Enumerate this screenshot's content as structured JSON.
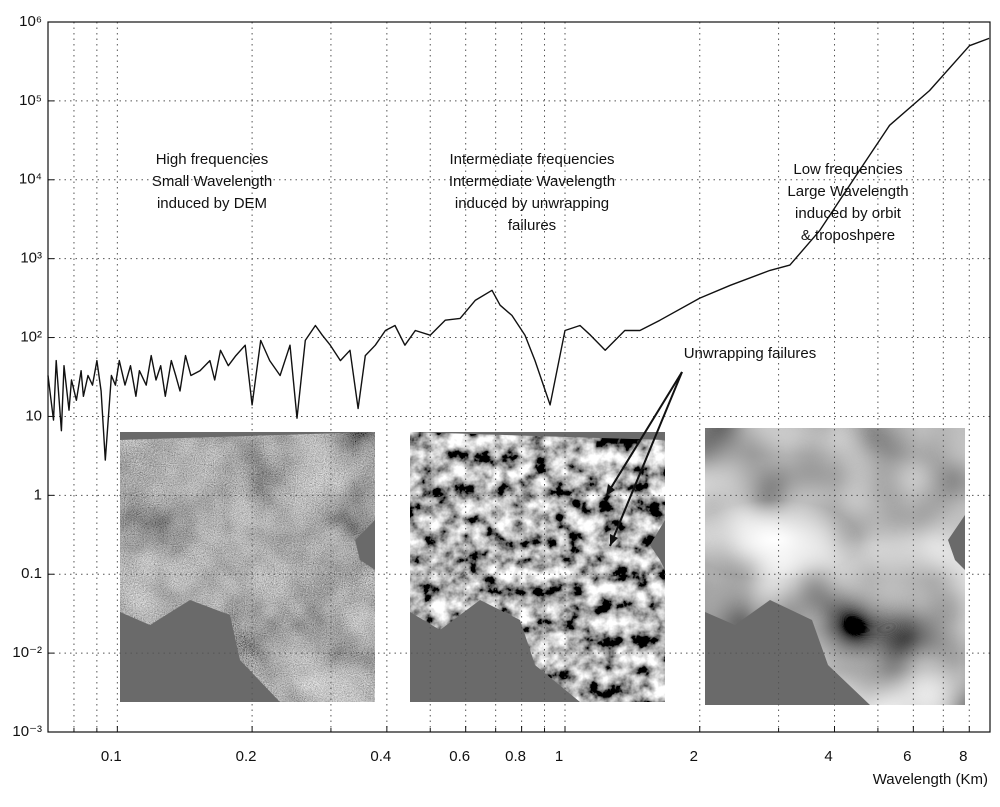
{
  "chart_data": {
    "type": "line",
    "x_label": "Wavelength (Km)",
    "log_x": true,
    "log_y": true,
    "grid": true,
    "xlim": [
      0.07,
      8.9
    ],
    "ylim": [
      0.001,
      1000000
    ],
    "xticks": [
      0.1,
      0.2,
      0.4,
      0.6,
      0.8,
      1,
      2,
      4,
      6,
      8
    ],
    "xminor": [
      0.08,
      0.09,
      0.3,
      0.5,
      0.7,
      0.9,
      3,
      5,
      7
    ],
    "yticks": [
      {
        "value": 0.001,
        "label": "10⁻³"
      },
      {
        "value": 0.01,
        "label": "10⁻²"
      },
      0.1,
      1,
      10,
      {
        "value": 100,
        "label": "10²"
      },
      {
        "value": 1000,
        "label": "10³"
      },
      {
        "value": 10000,
        "label": "10⁴"
      },
      {
        "value": 100000,
        "label": "10⁵"
      },
      {
        "value": 1000000,
        "label": "10⁶"
      }
    ],
    "series": [
      {
        "color": "#111111",
        "x": [
          0.07,
          0.072,
          0.073,
          0.075,
          0.076,
          0.078,
          0.079,
          0.081,
          0.083,
          0.084,
          0.086,
          0.088,
          0.09,
          0.092,
          0.094,
          0.097,
          0.099,
          0.101,
          0.104,
          0.107,
          0.11,
          0.112,
          0.116,
          0.119,
          0.122,
          0.125,
          0.128,
          0.132,
          0.135,
          0.138,
          0.142,
          0.146,
          0.153,
          0.161,
          0.165,
          0.17,
          0.177,
          0.184,
          0.193,
          0.2,
          0.209,
          0.219,
          0.231,
          0.243,
          0.252,
          0.263,
          0.277,
          0.287,
          0.299,
          0.315,
          0.331,
          0.345,
          0.358,
          0.377,
          0.397,
          0.417,
          0.439,
          0.463,
          0.5,
          0.54,
          0.583,
          0.63,
          0.687,
          0.716,
          0.761,
          0.814,
          0.857,
          0.926,
          1,
          1.08,
          1.14,
          1.23,
          1.36,
          1.47,
          1.63,
          2.0,
          2.34,
          2.87,
          3.18,
          3.71,
          4.55,
          5.31,
          6.52,
          8.01,
          8.86
        ],
        "values": [
          33,
          9,
          51,
          6.6,
          44,
          12,
          29,
          16,
          38,
          18,
          33,
          25,
          51,
          21,
          2.8,
          33,
          25,
          51,
          25,
          44,
          18,
          38,
          25,
          59,
          29,
          44,
          18,
          51,
          33,
          21,
          59,
          33,
          38,
          51,
          29,
          69,
          44,
          59,
          80,
          14,
          92,
          51,
          33,
          80,
          9.5,
          92,
          142,
          107,
          80,
          51,
          69,
          12.6,
          59,
          80,
          123,
          142,
          80,
          123,
          107,
          166,
          175,
          296,
          397,
          257,
          191,
          107,
          51,
          14,
          123,
          142,
          107,
          69,
          123,
          123,
          166,
          316,
          460,
          710,
          830,
          2290,
          13200,
          49000,
          135000,
          500000,
          620000
        ]
      }
    ],
    "annotations": [
      {
        "lines": [
          "High frequencies",
          "Small Wavelength",
          "induced by DEM"
        ]
      },
      {
        "lines": [
          "Intermediate frequencies",
          "Intermediate Wavelength",
          "induced by unwrapping",
          "failures"
        ]
      },
      {
        "lines": [
          "Low frequencies",
          "Large Wavelength",
          "induced by orbit",
          "& troposhpere"
        ]
      },
      {
        "lines": [
          "Unwrapping failures"
        ]
      }
    ]
  }
}
